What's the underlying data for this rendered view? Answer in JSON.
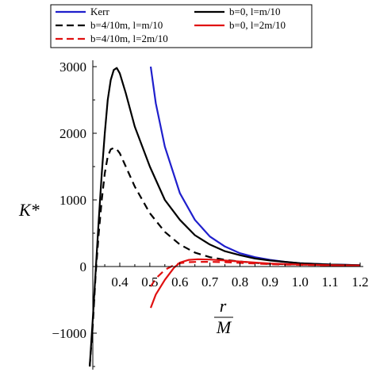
{
  "chart_data": {
    "type": "line",
    "xlabel": {
      "numerator": "r",
      "denominator": "M"
    },
    "ylabel": "K*",
    "xlim": [
      0.28,
      1.2
    ],
    "ylim": [
      -1500,
      3050
    ],
    "x_ticks": [
      "0.4",
      "0.5",
      "0.6",
      "0.7",
      "0.8",
      "0.9",
      "1.0",
      "1.1",
      "1.2"
    ],
    "x_tick_values": [
      0.4,
      0.5,
      0.6,
      0.7,
      0.8,
      0.9,
      1.0,
      1.1,
      1.2
    ],
    "y_ticks": [
      "3000",
      "2000",
      "1000",
      "0",
      "−1000"
    ],
    "y_tick_values": [
      3000,
      2000,
      1000,
      0,
      -1000
    ],
    "grid": false,
    "legend_position": "top",
    "series": [
      {
        "name": "Kerr",
        "color": "#1f1fcc",
        "dash": "solid",
        "x": [
          0.503,
          0.52,
          0.55,
          0.6,
          0.65,
          0.7,
          0.75,
          0.8,
          0.85,
          0.9,
          0.95,
          1.0,
          1.05,
          1.1,
          1.15,
          1.2
        ],
        "y": [
          3000,
          2450,
          1800,
          1100,
          700,
          450,
          300,
          200,
          140,
          100,
          70,
          50,
          40,
          30,
          25,
          20
        ]
      },
      {
        "name": "b=0, l=m/10",
        "color": "#000000",
        "dash": "solid",
        "x": [
          0.3,
          0.31,
          0.32,
          0.33,
          0.34,
          0.35,
          0.36,
          0.37,
          0.38,
          0.39,
          0.4,
          0.42,
          0.45,
          0.5,
          0.55,
          0.6,
          0.65,
          0.7,
          0.75,
          0.8,
          0.85,
          0.9,
          0.95,
          1.0,
          1.1,
          1.2
        ],
        "y": [
          -1500,
          -800,
          -50,
          700,
          1400,
          2000,
          2500,
          2800,
          2950,
          2980,
          2900,
          2600,
          2100,
          1500,
          1000,
          700,
          470,
          330,
          230,
          170,
          120,
          90,
          70,
          50,
          30,
          20
        ]
      },
      {
        "name": "b=4/10m, l=m/10",
        "color": "#000000",
        "dash": "dashed",
        "x": [
          0.3,
          0.31,
          0.32,
          0.33,
          0.34,
          0.35,
          0.36,
          0.37,
          0.38,
          0.39,
          0.4,
          0.42,
          0.45,
          0.5,
          0.55,
          0.6,
          0.65,
          0.7,
          0.75,
          0.8,
          0.85,
          0.9,
          1.0,
          1.1,
          1.2
        ],
        "y": [
          -1500,
          -900,
          -100,
          500,
          1000,
          1400,
          1650,
          1760,
          1780,
          1760,
          1700,
          1500,
          1200,
          800,
          520,
          330,
          210,
          140,
          100,
          75,
          55,
          40,
          30,
          20,
          15
        ]
      },
      {
        "name": "b=0, l=2m/10",
        "color": "#e01010",
        "dash": "solid",
        "x": [
          0.503,
          0.52,
          0.55,
          0.58,
          0.6,
          0.63,
          0.66,
          0.7,
          0.75,
          0.8,
          0.85,
          0.9,
          1.0,
          1.1,
          1.2
        ],
        "y": [
          -620,
          -420,
          -200,
          -20,
          60,
          100,
          110,
          105,
          90,
          75,
          60,
          45,
          30,
          20,
          15
        ]
      },
      {
        "name": "b=4/10m, l=2m/10",
        "color": "#e01010",
        "dash": "dashed",
        "x": [
          0.503,
          0.52,
          0.55,
          0.58,
          0.6,
          0.63,
          0.66,
          0.7,
          0.75,
          0.8,
          0.85,
          0.9,
          1.0,
          1.1,
          1.2
        ],
        "y": [
          -300,
          -180,
          -50,
          20,
          50,
          65,
          70,
          70,
          65,
          55,
          45,
          35,
          25,
          18,
          12
        ]
      }
    ],
    "legend": {
      "rows": [
        [
          "Kerr",
          "b=0, l=m/10"
        ],
        [
          "b=4/10m, l=m/10",
          "b=0, l=2m/10"
        ],
        [
          "b=4/10m, l=2m/10"
        ]
      ]
    }
  }
}
